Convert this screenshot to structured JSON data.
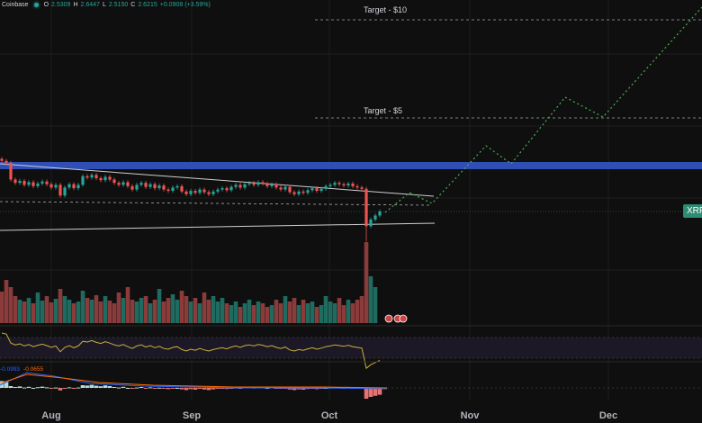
{
  "legend": {
    "exchange": "Coinbase",
    "o_label": "O",
    "o": "2.5309",
    "h_label": "H",
    "h": "2.6447",
    "l_label": "L",
    "l": "2.5150",
    "c_label": "C",
    "c": "2.6215",
    "change": "+0.0908 (+3.59%)"
  },
  "symbol_tag": "XRP",
  "targets": [
    {
      "label": "Target - $10"
    },
    {
      "label": "Target - $5"
    }
  ],
  "macd": {
    "macd": "-0.0993",
    "signal": "-0.0655"
  },
  "colors": {
    "up": "#26a69a",
    "down": "#ef5350",
    "resistance": "#2f4fb5",
    "projection": "#4caf50"
  },
  "chart_data": {
    "type": "candlestick",
    "x_ticks": [
      "Aug",
      "Sep",
      "Oct",
      "Nov",
      "Dec"
    ],
    "closes": [
      3.38,
      3.35,
      3.1,
      3.05,
      3.08,
      3.02,
      3.06,
      3.0,
      3.04,
      3.07,
      3.03,
      2.98,
      3.02,
      2.86,
      2.98,
      3.03,
      2.97,
      3.02,
      3.15,
      3.13,
      3.17,
      3.12,
      3.09,
      3.14,
      3.1,
      3.05,
      3.02,
      3.06,
      3.0,
      2.95,
      3.02,
      3.05,
      2.99,
      3.03,
      2.97,
      3.01,
      2.95,
      2.93,
      2.98,
      3.0,
      2.92,
      2.88,
      2.93,
      2.9,
      2.95,
      2.91,
      2.88,
      2.92,
      2.95,
      2.97,
      2.94,
      2.99,
      3.02,
      2.98,
      3.03,
      3.05,
      3.02,
      3.06,
      3.04,
      3.0,
      3.03,
      2.98,
      2.95,
      2.99,
      2.91,
      2.88,
      2.92,
      2.9,
      2.94,
      2.97,
      2.93,
      2.96,
      3.0,
      3.02,
      3.05,
      3.03,
      3.01,
      3.04,
      3.0,
      2.98,
      2.96,
      2.4,
      2.5,
      2.56,
      2.62
    ],
    "volumes": [
      35,
      48,
      40,
      30,
      26,
      24,
      28,
      22,
      34,
      25,
      30,
      23,
      27,
      38,
      30,
      26,
      22,
      24,
      36,
      28,
      26,
      31,
      24,
      30,
      25,
      22,
      34,
      28,
      40,
      26,
      24,
      28,
      30,
      22,
      26,
      38,
      24,
      28,
      32,
      26,
      36,
      30,
      24,
      28,
      22,
      34,
      26,
      30,
      24,
      28,
      22,
      20,
      24,
      18,
      22,
      26,
      20,
      24,
      22,
      18,
      20,
      26,
      22,
      30,
      24,
      28,
      20,
      26,
      22,
      24,
      18,
      20,
      30,
      24,
      22,
      28,
      20,
      26,
      22,
      26,
      30,
      90,
      52,
      40,
      0
    ],
    "projection_targets": [
      "$10",
      "$5"
    ]
  }
}
